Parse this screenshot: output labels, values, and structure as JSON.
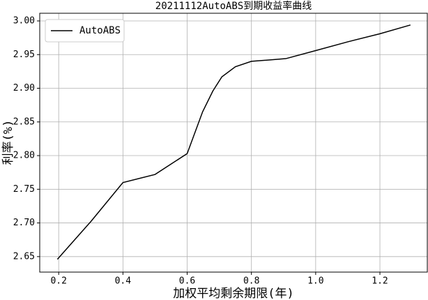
{
  "chart_data": {
    "type": "line",
    "title": "20211112AutoABS到期收益率曲线",
    "xlabel": "加权平均剩余期限(年)",
    "ylabel": "利率(%)",
    "series": [
      {
        "name": "AutoABS",
        "color": "#000000",
        "x": [
          0.196,
          0.3,
          0.4,
          0.5,
          0.6,
          0.648,
          0.68,
          0.708,
          0.75,
          0.8,
          0.907,
          1.0,
          1.1,
          1.2,
          1.295
        ],
        "values": [
          2.646,
          2.702,
          2.76,
          2.772,
          2.803,
          2.865,
          2.896,
          2.917,
          2.932,
          2.94,
          2.944,
          2.956,
          2.969,
          2.981,
          2.994
        ]
      }
    ],
    "xlim": [
      0.141,
      1.3475
    ],
    "ylim": [
      2.627,
      3.0114
    ],
    "xticks": [
      0.2,
      0.4,
      0.6,
      0.8,
      {
        "value": 1,
        "label": "1.0"
      },
      1.2
    ],
    "yticks": [
      {
        "value": 2.65,
        "label": "2.65"
      },
      {
        "value": 2.7,
        "label": "2.70"
      },
      {
        "value": 2.75,
        "label": "2.75"
      },
      {
        "value": 2.8,
        "label": "2.80"
      },
      {
        "value": 2.85,
        "label": "2.85"
      },
      {
        "value": 2.9,
        "label": "2.90"
      },
      {
        "value": 2.95,
        "label": "2.95"
      },
      {
        "value": 3,
        "label": "3.00"
      }
    ],
    "grid": true,
    "legend": "upper left"
  }
}
